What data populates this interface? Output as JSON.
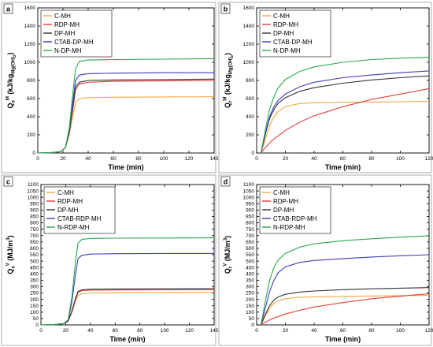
{
  "chart_data": [
    {
      "type": "line",
      "panel_label": "a",
      "xlabel": "Time (min)",
      "ylabel": "Q",
      "ylabel_sub": "s",
      "ylabel_sup": "M",
      "ylabel_unit": "(kJ/kg",
      "ylabel_unit_sub": "Mg(OH)",
      "ylabel_unit_sub2": "2",
      "ylabel_unit_close": ")",
      "xlim": [
        0,
        140
      ],
      "ylim": [
        0,
        1600
      ],
      "xticks": [
        "0",
        "20",
        "40",
        "60",
        "80",
        "100",
        "120",
        "140"
      ],
      "yticks": [
        "0",
        "200",
        "400",
        "600",
        "800",
        "1000",
        "1200",
        "1400",
        "1600"
      ],
      "legend_position": "top-left",
      "series": [
        {
          "name": "C-MH",
          "color": "#f5a742",
          "x": [
            0,
            10,
            18,
            22,
            25,
            28,
            30,
            33,
            40,
            60,
            100,
            140
          ],
          "y": [
            0,
            3,
            15,
            60,
            200,
            420,
            560,
            600,
            610,
            615,
            618,
            620
          ]
        },
        {
          "name": "RDP-MH",
          "color": "#e8403a",
          "x": [
            0,
            10,
            18,
            22,
            25,
            28,
            30,
            33,
            40,
            60,
            100,
            140
          ],
          "y": [
            0,
            3,
            15,
            60,
            230,
            500,
            700,
            760,
            780,
            790,
            795,
            800
          ]
        },
        {
          "name": "DP-MH",
          "color": "#333333",
          "x": [
            0,
            10,
            18,
            22,
            25,
            28,
            30,
            33,
            40,
            60,
            100,
            140
          ],
          "y": [
            0,
            3,
            15,
            60,
            230,
            520,
            730,
            780,
            800,
            805,
            810,
            815
          ]
        },
        {
          "name": "CTAB-DP-MH",
          "color": "#3d3dbf",
          "x": [
            0,
            10,
            18,
            22,
            25,
            28,
            30,
            33,
            40,
            60,
            100,
            140
          ],
          "y": [
            0,
            3,
            15,
            60,
            250,
            580,
            800,
            860,
            875,
            880,
            885,
            885
          ]
        },
        {
          "name": "N-DP-MH",
          "color": "#2aa84a",
          "x": [
            0,
            10,
            18,
            22,
            25,
            28,
            30,
            33,
            40,
            60,
            100,
            140
          ],
          "y": [
            0,
            3,
            15,
            60,
            280,
            680,
            930,
            1010,
            1025,
            1030,
            1035,
            1040
          ]
        }
      ]
    },
    {
      "type": "line",
      "panel_label": "b",
      "xlabel": "Time (min)",
      "ylabel": "Q",
      "ylabel_sub": "r",
      "ylabel_sup": "M",
      "ylabel_unit": "(kJ/kg",
      "ylabel_unit_sub": "Mg(OH)",
      "ylabel_unit_sub2": "2",
      "ylabel_unit_close": ")",
      "xlim": [
        0,
        120
      ],
      "ylim": [
        0,
        1600
      ],
      "xticks": [
        "0",
        "20",
        "40",
        "60",
        "80",
        "100",
        "120"
      ],
      "yticks": [
        "0",
        "200",
        "400",
        "600",
        "800",
        "1000",
        "1200",
        "1400",
        "1600"
      ],
      "legend_position": "top-left",
      "series": [
        {
          "name": "C-MH",
          "color": "#f5a742",
          "x": [
            3,
            6,
            9,
            12,
            15,
            20,
            25,
            30,
            40,
            60,
            80,
            100,
            120
          ],
          "y": [
            0,
            150,
            300,
            400,
            460,
            510,
            530,
            545,
            555,
            560,
            562,
            565,
            568
          ]
        },
        {
          "name": "RDP-MH",
          "color": "#e8403a",
          "x": [
            3,
            5,
            10,
            20,
            30,
            40,
            60,
            80,
            100,
            120
          ],
          "y": [
            0,
            40,
            130,
            250,
            340,
            410,
            510,
            590,
            650,
            710
          ]
        },
        {
          "name": "DP-MH",
          "color": "#333333",
          "x": [
            3,
            6,
            9,
            12,
            15,
            20,
            30,
            40,
            60,
            80,
            100,
            120
          ],
          "y": [
            0,
            200,
            380,
            480,
            550,
            610,
            680,
            720,
            770,
            805,
            830,
            850
          ]
        },
        {
          "name": "CTAB-DP-MH",
          "color": "#3d3dbf",
          "x": [
            3,
            6,
            9,
            12,
            15,
            20,
            30,
            40,
            60,
            80,
            100,
            120
          ],
          "y": [
            0,
            210,
            400,
            510,
            580,
            650,
            730,
            780,
            830,
            860,
            885,
            905
          ]
        },
        {
          "name": "N-DP-MH",
          "color": "#2aa84a",
          "x": [
            3,
            6,
            9,
            12,
            15,
            20,
            30,
            40,
            60,
            80,
            100,
            120
          ],
          "y": [
            0,
            250,
            480,
            620,
            720,
            810,
            900,
            950,
            1000,
            1030,
            1045,
            1055
          ]
        }
      ]
    },
    {
      "type": "line",
      "panel_label": "c",
      "xlabel": "Time (min)",
      "ylabel": "Q",
      "ylabel_sub": "s",
      "ylabel_sup": "V",
      "ylabel_unit": "(MJ/m",
      "ylabel_unit_sup": "3",
      "ylabel_unit_close": ")",
      "xlim": [
        0,
        140
      ],
      "ylim": [
        0,
        1100
      ],
      "xticks": [
        "0",
        "20",
        "40",
        "60",
        "80",
        "100",
        "120",
        "140"
      ],
      "yticks": [
        "0",
        "50",
        "100",
        "150",
        "200",
        "250",
        "300",
        "350",
        "400",
        "450",
        "500",
        "550",
        "600",
        "650",
        "700",
        "750",
        "800",
        "850",
        "900",
        "950",
        "1000",
        "1050",
        "1100"
      ],
      "legend_position": "top-left",
      "series": [
        {
          "name": "C-MH",
          "color": "#f5a742",
          "x": [
            0,
            10,
            18,
            22,
            25,
            28,
            30,
            33,
            40,
            60,
            100,
            140
          ],
          "y": [
            0,
            2,
            10,
            30,
            100,
            190,
            230,
            245,
            250,
            252,
            254,
            255
          ]
        },
        {
          "name": "RDP-MH",
          "color": "#e8403a",
          "x": [
            0,
            10,
            18,
            22,
            25,
            28,
            30,
            33,
            40,
            60,
            100,
            140
          ],
          "y": [
            0,
            2,
            10,
            30,
            100,
            200,
            255,
            268,
            272,
            274,
            275,
            276
          ]
        },
        {
          "name": "DP-MH",
          "color": "#333333",
          "x": [
            0,
            10,
            18,
            22,
            25,
            28,
            30,
            33,
            40,
            60,
            100,
            140
          ],
          "y": [
            0,
            2,
            10,
            30,
            110,
            210,
            262,
            275,
            280,
            282,
            283,
            284
          ]
        },
        {
          "name": "CTAB-RDP-MH",
          "color": "#3d3dbf",
          "x": [
            0,
            10,
            18,
            22,
            25,
            28,
            30,
            33,
            40,
            60,
            100,
            140
          ],
          "y": [
            0,
            2,
            10,
            35,
            180,
            400,
            520,
            545,
            555,
            558,
            560,
            560
          ]
        },
        {
          "name": "N-RDP-MH",
          "color": "#2aa84a",
          "x": [
            0,
            10,
            18,
            22,
            25,
            28,
            30,
            33,
            40,
            60,
            100,
            140
          ],
          "y": [
            0,
            2,
            10,
            40,
            220,
            500,
            640,
            670,
            678,
            680,
            681,
            682
          ]
        }
      ]
    },
    {
      "type": "line",
      "panel_label": "d",
      "xlabel": "Time (min)",
      "ylabel": "Q",
      "ylabel_sub": "r",
      "ylabel_sup": "V",
      "ylabel_unit": "(MJ/m",
      "ylabel_unit_sup": "3",
      "ylabel_unit_close": ")",
      "xlim": [
        0,
        120
      ],
      "ylim": [
        0,
        1100
      ],
      "xticks": [
        "0",
        "20",
        "40",
        "60",
        "80",
        "100",
        "120"
      ],
      "yticks": [
        "0",
        "50",
        "100",
        "150",
        "200",
        "250",
        "300",
        "350",
        "400",
        "450",
        "500",
        "550",
        "600",
        "650",
        "700",
        "750",
        "800",
        "850",
        "900",
        "950",
        "1000",
        "1050",
        "1100"
      ],
      "legend_position": "top-left",
      "series": [
        {
          "name": "C-MH",
          "color": "#f5a742",
          "x": [
            3,
            6,
            9,
            12,
            15,
            20,
            25,
            30,
            40,
            60,
            80,
            100,
            120
          ],
          "y": [
            0,
            70,
            130,
            170,
            190,
            205,
            212,
            216,
            220,
            224,
            227,
            229,
            231
          ]
        },
        {
          "name": "RDP-MH",
          "color": "#e8403a",
          "x": [
            3,
            5,
            10,
            20,
            30,
            40,
            60,
            80,
            100,
            120
          ],
          "y": [
            0,
            15,
            45,
            85,
            115,
            140,
            175,
            205,
            225,
            245
          ]
        },
        {
          "name": "DP-MH",
          "color": "#333333",
          "x": [
            3,
            6,
            9,
            12,
            15,
            20,
            30,
            40,
            60,
            80,
            100,
            120
          ],
          "y": [
            0,
            80,
            150,
            195,
            220,
            240,
            258,
            266,
            276,
            283,
            288,
            292
          ]
        },
        {
          "name": "CTAB-RDP-MH",
          "color": "#3d3dbf",
          "x": [
            3,
            6,
            9,
            12,
            15,
            20,
            30,
            40,
            60,
            80,
            100,
            120
          ],
          "y": [
            0,
            130,
            260,
            350,
            410,
            455,
            490,
            505,
            520,
            532,
            542,
            550
          ]
        },
        {
          "name": "N-RDP-MH",
          "color": "#2aa84a",
          "x": [
            3,
            6,
            9,
            12,
            15,
            20,
            30,
            40,
            60,
            80,
            100,
            120
          ],
          "y": [
            0,
            180,
            350,
            450,
            510,
            560,
            610,
            635,
            660,
            675,
            688,
            698
          ]
        }
      ]
    }
  ]
}
